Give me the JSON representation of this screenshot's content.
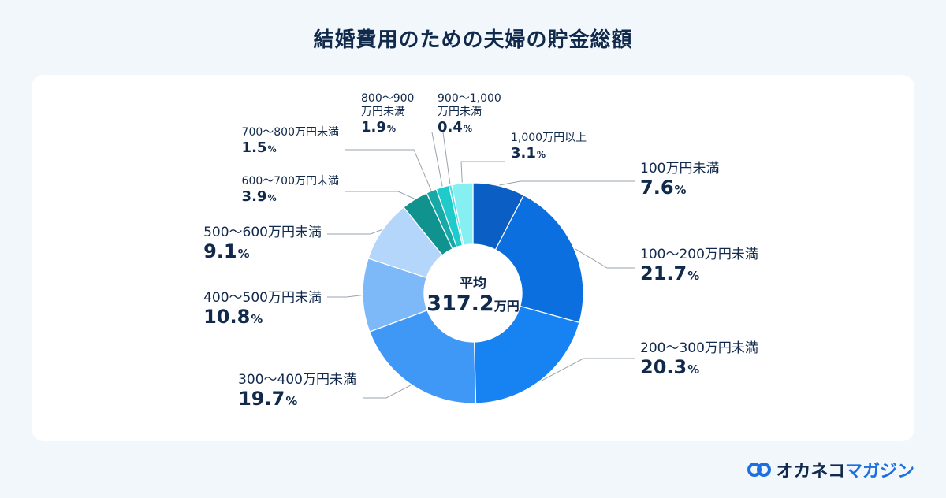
{
  "title": "結婚費用のための夫婦の貯金総額",
  "chart_data": {
    "type": "donut",
    "categories": [
      "100万円未満",
      "100〜200万円未満",
      "200〜300万円未満",
      "300〜400万円未満",
      "400〜500万円未満",
      "500〜600万円未満",
      "600〜700万円未満",
      "700〜800万円未満",
      "800〜900万円未満",
      "900〜1,000万円未満",
      "1,000万円以上"
    ],
    "values": [
      7.6,
      21.7,
      20.3,
      19.7,
      10.8,
      9.1,
      3.9,
      1.5,
      1.9,
      0.4,
      3.1
    ],
    "unit": "%",
    "colors": [
      "#0a5ec4",
      "#0b6fe0",
      "#1782f2",
      "#3f98f6",
      "#7db9f9",
      "#b5d6fb",
      "#10938f",
      "#17a9a7",
      "#1fcaca",
      "#44e0e2",
      "#86eff2"
    ],
    "center_label": "平均",
    "average": 317.2,
    "average_unit": "万円"
  },
  "brand": {
    "main": "オカネコ",
    "sub": "マガジン"
  }
}
